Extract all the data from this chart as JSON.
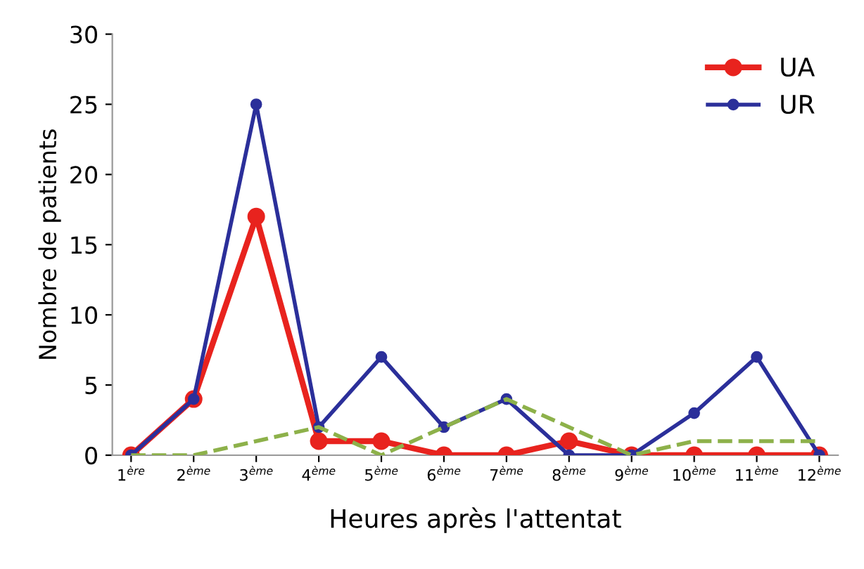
{
  "chart_data": {
    "type": "line",
    "xlabel": "Heures après l'attentat",
    "ylabel": "Nombre de patients",
    "categories": [
      "1$^{ère}$",
      "2$^{ème}$",
      "3$^{ème}$",
      "4$^{ème}$",
      "5$^{ème}$",
      "6$^{ème}$",
      "7$^{ème}$",
      "8$^{ème}$",
      "9$^{ème}$",
      "10$^{ème}$",
      "11$^{ème}$",
      "12$^{ème}$"
    ],
    "series": [
      {
        "name": "UA",
        "color": "#e8231e",
        "values": [
          0,
          4,
          17,
          1,
          1,
          0,
          0,
          1,
          0,
          0,
          0,
          0
        ],
        "marker": "circle",
        "line_style": "solid"
      },
      {
        "name": "UR",
        "color": "#2b2f9a",
        "values": [
          0,
          4,
          25,
          2,
          7,
          2,
          4,
          0,
          0,
          3,
          7,
          0
        ],
        "marker": "circle",
        "line_style": "solid"
      },
      {
        "color": "#8db14a",
        "values": [
          0,
          0,
          1,
          2,
          0,
          2,
          4,
          2,
          0,
          1,
          1,
          1
        ],
        "marker": "none",
        "line_style": "dashed"
      }
    ],
    "ylim": [
      0,
      30
    ],
    "yticks": [
      0,
      5,
      10,
      15,
      20,
      25,
      30
    ],
    "grid": false,
    "legend": "top right"
  }
}
